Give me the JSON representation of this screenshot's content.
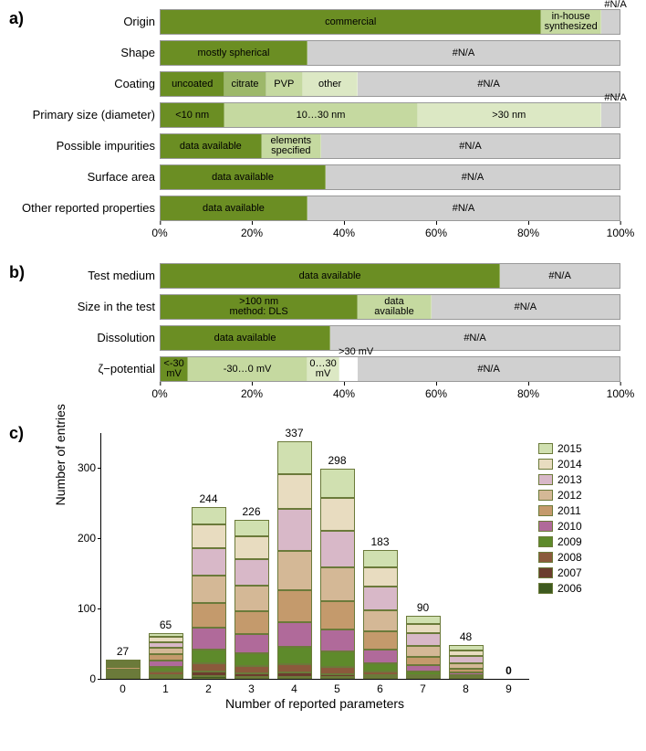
{
  "colors": {
    "dark_green": "#6b8e23",
    "mid_green": "#9db86a",
    "light_green": "#c5d9a0",
    "pale_green": "#dce8c4",
    "grey": "#d0d0d0",
    "white": "#ffffff"
  },
  "panel_a": {
    "label": "a)",
    "xticks": [
      0,
      20,
      40,
      60,
      80,
      100
    ],
    "xtick_suffix": "%",
    "rows": [
      {
        "label": "Origin",
        "segments": [
          {
            "width": 83,
            "text": "commercial",
            "color": "dark_green"
          },
          {
            "width": 13,
            "text": "in-house\nsynthesized",
            "color": "light_green"
          },
          {
            "width": 4,
            "text": "#N/A",
            "color": "grey",
            "text_overflow": "right"
          }
        ]
      },
      {
        "label": "Shape",
        "segments": [
          {
            "width": 32,
            "text": "mostly spherical",
            "color": "dark_green"
          },
          {
            "width": 68,
            "text": "#N/A",
            "color": "grey"
          }
        ]
      },
      {
        "label": "Coating",
        "segments": [
          {
            "width": 14,
            "text": "uncoated",
            "color": "dark_green"
          },
          {
            "width": 9,
            "text": "citrate",
            "color": "mid_green"
          },
          {
            "width": 8,
            "text": "PVP",
            "color": "light_green"
          },
          {
            "width": 12,
            "text": "other",
            "color": "pale_green"
          },
          {
            "width": 57,
            "text": "#N/A",
            "color": "grey"
          }
        ]
      },
      {
        "label": "Primary size (diameter)",
        "segments": [
          {
            "width": 14,
            "text": "<10 nm",
            "color": "dark_green"
          },
          {
            "width": 42,
            "text": "10…30 nm",
            "color": "light_green"
          },
          {
            "width": 40,
            "text": ">30 nm",
            "color": "pale_green"
          },
          {
            "width": 4,
            "text": "#N/A",
            "color": "grey",
            "text_overflow": "right"
          }
        ]
      },
      {
        "label": "Possible impurities",
        "segments": [
          {
            "width": 22,
            "text": "data available",
            "color": "dark_green"
          },
          {
            "width": 13,
            "text": "elements\nspecified",
            "color": "light_green"
          },
          {
            "width": 65,
            "text": "#N/A",
            "color": "grey"
          }
        ]
      },
      {
        "label": "Surface area",
        "segments": [
          {
            "width": 36,
            "text": "data available",
            "color": "dark_green"
          },
          {
            "width": 64,
            "text": "#N/A",
            "color": "grey"
          }
        ]
      },
      {
        "label": "Other reported properties",
        "segments": [
          {
            "width": 32,
            "text": "data available",
            "color": "dark_green"
          },
          {
            "width": 68,
            "text": "#N/A",
            "color": "grey"
          }
        ]
      }
    ]
  },
  "panel_b": {
    "label": "b)",
    "xticks": [
      0,
      20,
      40,
      60,
      80,
      100
    ],
    "xtick_suffix": "%",
    "rows": [
      {
        "label": "Test medium",
        "segments": [
          {
            "width": 74,
            "text": "data available",
            "color": "dark_green"
          },
          {
            "width": 26,
            "text": "#N/A",
            "color": "grey"
          }
        ]
      },
      {
        "label": "Size in the test",
        "segments": [
          {
            "width": 43,
            "text": ">100 nm\nmethod: DLS",
            "color": "dark_green"
          },
          {
            "width": 16,
            "text": "data\navailable",
            "color": "light_green"
          },
          {
            "width": 41,
            "text": "#N/A",
            "color": "grey"
          }
        ]
      },
      {
        "label": "Dissolution",
        "segments": [
          {
            "width": 37,
            "text": "data available",
            "color": "dark_green"
          },
          {
            "width": 63,
            "text": "#N/A",
            "color": "grey"
          }
        ]
      },
      {
        "label": "ζ−potential",
        "segments": [
          {
            "width": 6,
            "text": "<-30\nmV",
            "color": "dark_green"
          },
          {
            "width": 26,
            "text": "-30…0 mV",
            "color": "light_green"
          },
          {
            "width": 7,
            "text": "0…30\nmV",
            "color": "pale_green"
          },
          {
            "width": 4,
            "text": ">30\nmV",
            "color": "white",
            "text_overflow": "right"
          },
          {
            "width": 57,
            "text": "#N/A",
            "color": "grey"
          }
        ]
      }
    ]
  },
  "panel_c": {
    "label": "c)",
    "xlabel": "Number of  reported parameters",
    "ylabel": "Number of entries",
    "ymax": 350,
    "yticks": [
      0,
      100,
      200,
      300
    ],
    "xcategories": [
      "0",
      "1",
      "2",
      "3",
      "4",
      "5",
      "6",
      "7",
      "8",
      "9"
    ],
    "totals": [
      27,
      65,
      244,
      226,
      337,
      298,
      183,
      90,
      48,
      0
    ],
    "total_bold_index": 9,
    "year_colors": {
      "2006": "#3e5a1f",
      "2007": "#6b3d2e",
      "2008": "#8b5a3c",
      "2009": "#5e8a2b",
      "2010": "#b06a9a",
      "2011": "#c49a6c",
      "2012": "#d4b896",
      "2013": "#d8b8c8",
      "2014": "#e8dcc0",
      "2015": "#d0e0b0"
    },
    "legend_order": [
      "2015",
      "2014",
      "2013",
      "2012",
      "2011",
      "2010",
      "2009",
      "2008",
      "2007",
      "2006"
    ],
    "stacks": [
      {
        "x": "0",
        "parts": [
          {
            "y": "2006",
            "v": 1
          },
          {
            "y": "2007",
            "v": 2
          },
          {
            "y": "2008",
            "v": 3
          },
          {
            "y": "2009",
            "v": 3
          },
          {
            "y": "2010",
            "v": 4
          },
          {
            "y": "2011",
            "v": 4
          },
          {
            "y": "2012",
            "v": 3
          },
          {
            "y": "2013",
            "v": 3
          },
          {
            "y": "2014",
            "v": 2
          },
          {
            "y": "2015",
            "v": 2
          }
        ]
      },
      {
        "x": "1",
        "parts": [
          {
            "y": "2006",
            "v": 2
          },
          {
            "y": "2007",
            "v": 3
          },
          {
            "y": "2008",
            "v": 5
          },
          {
            "y": "2009",
            "v": 7
          },
          {
            "y": "2010",
            "v": 8
          },
          {
            "y": "2011",
            "v": 10
          },
          {
            "y": "2012",
            "v": 9
          },
          {
            "y": "2013",
            "v": 8
          },
          {
            "y": "2014",
            "v": 7
          },
          {
            "y": "2015",
            "v": 6
          }
        ]
      },
      {
        "x": "2",
        "parts": [
          {
            "y": "2006",
            "v": 4
          },
          {
            "y": "2007",
            "v": 6
          },
          {
            "y": "2008",
            "v": 12
          },
          {
            "y": "2009",
            "v": 20
          },
          {
            "y": "2010",
            "v": 30
          },
          {
            "y": "2011",
            "v": 35
          },
          {
            "y": "2012",
            "v": 40
          },
          {
            "y": "2013",
            "v": 38
          },
          {
            "y": "2014",
            "v": 34
          },
          {
            "y": "2015",
            "v": 25
          }
        ]
      },
      {
        "x": "3",
        "parts": [
          {
            "y": "2006",
            "v": 3
          },
          {
            "y": "2007",
            "v": 5
          },
          {
            "y": "2008",
            "v": 10
          },
          {
            "y": "2009",
            "v": 18
          },
          {
            "y": "2010",
            "v": 28
          },
          {
            "y": "2011",
            "v": 32
          },
          {
            "y": "2012",
            "v": 36
          },
          {
            "y": "2013",
            "v": 38
          },
          {
            "y": "2014",
            "v": 32
          },
          {
            "y": "2015",
            "v": 24
          }
        ]
      },
      {
        "x": "4",
        "parts": [
          {
            "y": "2006",
            "v": 3
          },
          {
            "y": "2007",
            "v": 6
          },
          {
            "y": "2008",
            "v": 12
          },
          {
            "y": "2009",
            "v": 25
          },
          {
            "y": "2010",
            "v": 35
          },
          {
            "y": "2011",
            "v": 45
          },
          {
            "y": "2012",
            "v": 55
          },
          {
            "y": "2013",
            "v": 60
          },
          {
            "y": "2014",
            "v": 50
          },
          {
            "y": "2015",
            "v": 46
          }
        ]
      },
      {
        "x": "5",
        "parts": [
          {
            "y": "2006",
            "v": 2
          },
          {
            "y": "2007",
            "v": 4
          },
          {
            "y": "2008",
            "v": 10
          },
          {
            "y": "2009",
            "v": 22
          },
          {
            "y": "2010",
            "v": 32
          },
          {
            "y": "2011",
            "v": 40
          },
          {
            "y": "2012",
            "v": 48
          },
          {
            "y": "2013",
            "v": 52
          },
          {
            "y": "2014",
            "v": 46
          },
          {
            "y": "2015",
            "v": 42
          }
        ]
      },
      {
        "x": "6",
        "parts": [
          {
            "y": "2006",
            "v": 1
          },
          {
            "y": "2007",
            "v": 2
          },
          {
            "y": "2008",
            "v": 5
          },
          {
            "y": "2009",
            "v": 12
          },
          {
            "y": "2010",
            "v": 20
          },
          {
            "y": "2011",
            "v": 26
          },
          {
            "y": "2012",
            "v": 30
          },
          {
            "y": "2013",
            "v": 34
          },
          {
            "y": "2014",
            "v": 28
          },
          {
            "y": "2015",
            "v": 25
          }
        ]
      },
      {
        "x": "7",
        "parts": [
          {
            "y": "2006",
            "v": 0
          },
          {
            "y": "2007",
            "v": 1
          },
          {
            "y": "2008",
            "v": 2
          },
          {
            "y": "2009",
            "v": 5
          },
          {
            "y": "2010",
            "v": 9
          },
          {
            "y": "2011",
            "v": 13
          },
          {
            "y": "2012",
            "v": 16
          },
          {
            "y": "2013",
            "v": 18
          },
          {
            "y": "2014",
            "v": 14
          },
          {
            "y": "2015",
            "v": 12
          }
        ]
      },
      {
        "x": "8",
        "parts": [
          {
            "y": "2006",
            "v": 0
          },
          {
            "y": "2007",
            "v": 0
          },
          {
            "y": "2008",
            "v": 1
          },
          {
            "y": "2009",
            "v": 2
          },
          {
            "y": "2010",
            "v": 4
          },
          {
            "y": "2011",
            "v": 6
          },
          {
            "y": "2012",
            "v": 8
          },
          {
            "y": "2013",
            "v": 10
          },
          {
            "y": "2014",
            "v": 9
          },
          {
            "y": "2015",
            "v": 8
          }
        ]
      },
      {
        "x": "9",
        "parts": []
      }
    ]
  }
}
